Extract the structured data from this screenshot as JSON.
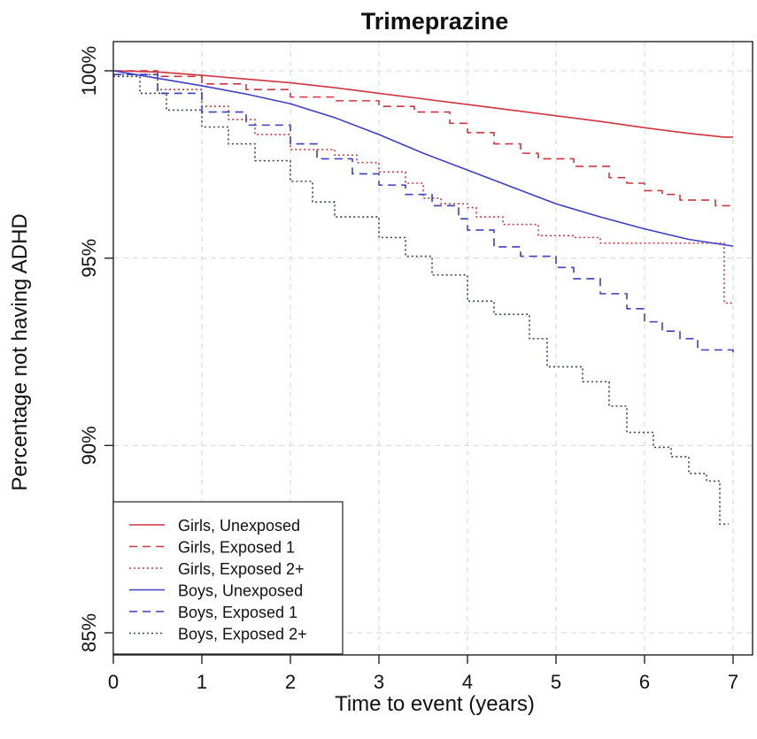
{
  "chart_data": {
    "type": "line",
    "title": "Trimeprazine",
    "xlabel": "Time to event (years)",
    "ylabel": "Percentage not having ADHD",
    "xlim": [
      0,
      7
    ],
    "ylim": [
      84.5,
      100.8
    ],
    "x_ticks": [
      "0",
      "1",
      "2",
      "3",
      "4",
      "5",
      "6",
      "7"
    ],
    "y_ticks": [
      {
        "value": 85,
        "label": "85%"
      },
      {
        "value": 90,
        "label": "90%"
      },
      {
        "value": 95,
        "label": "95%"
      },
      {
        "value": 100,
        "label": "100%"
      }
    ],
    "grid": true,
    "legend_position": "bottom-left",
    "series": [
      {
        "name": "Girls, Unexposed",
        "color": "#d0343f",
        "dash": "solid",
        "step": false,
        "points": [
          [
            0,
            100
          ],
          [
            0.5,
            99.97
          ],
          [
            1,
            99.88
          ],
          [
            1.5,
            99.78
          ],
          [
            2,
            99.68
          ],
          [
            2.5,
            99.55
          ],
          [
            3,
            99.4
          ],
          [
            3.5,
            99.25
          ],
          [
            4,
            99.1
          ],
          [
            4.5,
            98.95
          ],
          [
            5,
            98.8
          ],
          [
            5.5,
            98.65
          ],
          [
            6,
            98.48
          ],
          [
            6.5,
            98.33
          ],
          [
            6.9,
            98.23
          ],
          [
            7,
            98.23
          ]
        ]
      },
      {
        "name": "Girls, Exposed 1",
        "color": "#d0343f",
        "dash": "dashed",
        "step": true,
        "points": [
          [
            0,
            100
          ],
          [
            0.5,
            99.85
          ],
          [
            1,
            99.65
          ],
          [
            1.5,
            99.5
          ],
          [
            2,
            99.3
          ],
          [
            2.5,
            99.2
          ],
          [
            3,
            99.05
          ],
          [
            3.4,
            98.9
          ],
          [
            3.8,
            98.6
          ],
          [
            4,
            98.35
          ],
          [
            4.3,
            98.05
          ],
          [
            4.6,
            97.8
          ],
          [
            4.8,
            97.65
          ],
          [
            5.2,
            97.45
          ],
          [
            5.6,
            97.15
          ],
          [
            5.8,
            97
          ],
          [
            6,
            96.8
          ],
          [
            6.2,
            96.7
          ],
          [
            6.4,
            96.55
          ],
          [
            6.8,
            96.4
          ],
          [
            7,
            96.4
          ]
        ]
      },
      {
        "name": "Girls, Exposed 2+",
        "color": "#d0343f",
        "dash": "dotted",
        "step": true,
        "points": [
          [
            0,
            99.9
          ],
          [
            0.5,
            99.5
          ],
          [
            1,
            99.05
          ],
          [
            1.3,
            98.7
          ],
          [
            1.6,
            98.3
          ],
          [
            2,
            97.9
          ],
          [
            2.5,
            97.75
          ],
          [
            2.75,
            97.55
          ],
          [
            3,
            97.3
          ],
          [
            3.3,
            97.0
          ],
          [
            3.5,
            96.6
          ],
          [
            3.7,
            96.45
          ],
          [
            4,
            96.35
          ],
          [
            4.1,
            96.1
          ],
          [
            4.4,
            95.9
          ],
          [
            4.8,
            95.6
          ],
          [
            5.2,
            95.55
          ],
          [
            5.5,
            95.4
          ],
          [
            6.9,
            95.4
          ],
          [
            6.9,
            93.8
          ],
          [
            7,
            93.8
          ]
        ]
      },
      {
        "name": "Boys, Unexposed",
        "color": "#3b3fc4",
        "dash": "solid",
        "step": false,
        "points": [
          [
            0,
            100
          ],
          [
            0.5,
            99.8
          ],
          [
            1,
            99.6
          ],
          [
            1.5,
            99.38
          ],
          [
            2,
            99.12
          ],
          [
            2.5,
            98.75
          ],
          [
            3,
            98.3
          ],
          [
            3.5,
            97.8
          ],
          [
            4,
            97.35
          ],
          [
            4.5,
            96.9
          ],
          [
            5,
            96.45
          ],
          [
            5.5,
            96.1
          ],
          [
            6,
            95.78
          ],
          [
            6.5,
            95.5
          ],
          [
            7,
            95.32
          ]
        ]
      },
      {
        "name": "Boys, Exposed 1",
        "color": "#3b3fc4",
        "dash": "dashed",
        "step": true,
        "points": [
          [
            0,
            99.9
          ],
          [
            0.5,
            99.4
          ],
          [
            1,
            98.9
          ],
          [
            1.5,
            98.55
          ],
          [
            2,
            98.05
          ],
          [
            2.3,
            97.65
          ],
          [
            2.7,
            97.25
          ],
          [
            3,
            96.95
          ],
          [
            3.3,
            96.7
          ],
          [
            3.6,
            96.4
          ],
          [
            3.9,
            96.05
          ],
          [
            4,
            95.75
          ],
          [
            4.3,
            95.3
          ],
          [
            4.6,
            95.05
          ],
          [
            5,
            94.75
          ],
          [
            5.2,
            94.45
          ],
          [
            5.5,
            94.05
          ],
          [
            5.8,
            93.65
          ],
          [
            6,
            93.3
          ],
          [
            6.2,
            93.05
          ],
          [
            6.4,
            92.85
          ],
          [
            6.6,
            92.55
          ],
          [
            7,
            92.45
          ]
        ]
      },
      {
        "name": "Boys, Exposed 2+",
        "color": "#3a3f62",
        "dash": "dotted",
        "step": true,
        "points": [
          [
            0,
            99.85
          ],
          [
            0.3,
            99.4
          ],
          [
            0.6,
            98.95
          ],
          [
            1,
            98.5
          ],
          [
            1.3,
            98.05
          ],
          [
            1.6,
            97.6
          ],
          [
            2,
            97.05
          ],
          [
            2.25,
            96.5
          ],
          [
            2.5,
            96.1
          ],
          [
            3,
            95.55
          ],
          [
            3.3,
            95.05
          ],
          [
            3.6,
            94.55
          ],
          [
            4,
            93.85
          ],
          [
            4.3,
            93.5
          ],
          [
            4.7,
            92.85
          ],
          [
            4.9,
            92.1
          ],
          [
            5.3,
            91.7
          ],
          [
            5.6,
            91.05
          ],
          [
            5.8,
            90.35
          ],
          [
            6.1,
            89.95
          ],
          [
            6.3,
            89.7
          ],
          [
            6.5,
            89.25
          ],
          [
            6.7,
            89.05
          ],
          [
            6.85,
            87.9
          ],
          [
            6.95,
            87.9
          ]
        ]
      }
    ]
  }
}
